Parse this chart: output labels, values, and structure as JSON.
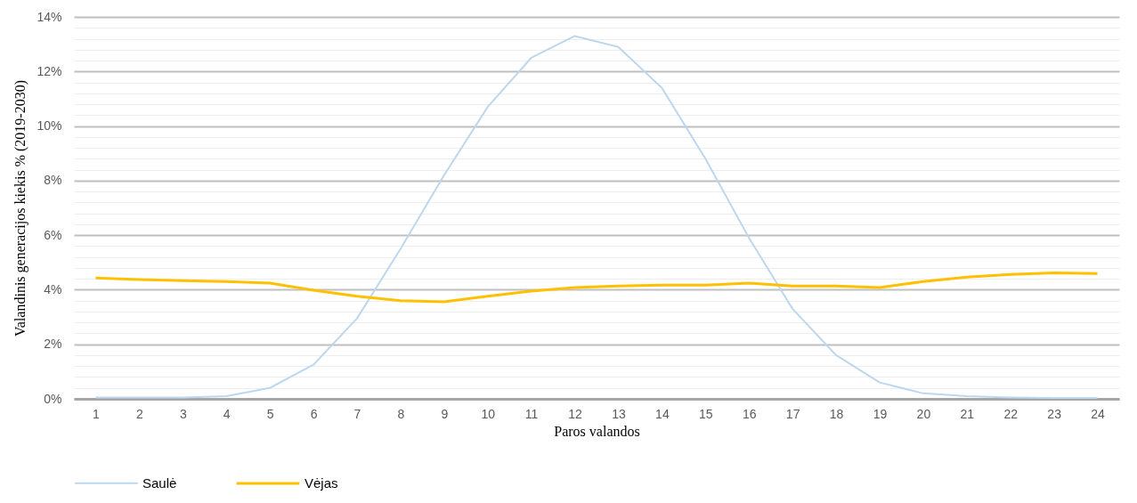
{
  "chart_data": {
    "type": "line",
    "xlabel": "Paros valandos",
    "ylabel": "Valandinis generacijos kiekis % (2019-2030)",
    "x": [
      1,
      2,
      3,
      4,
      5,
      6,
      7,
      8,
      9,
      10,
      11,
      12,
      13,
      14,
      15,
      16,
      17,
      18,
      19,
      20,
      21,
      22,
      23,
      24
    ],
    "xlim": [
      0.5,
      24.5
    ],
    "xticks": [
      1,
      2,
      3,
      4,
      5,
      6,
      7,
      8,
      9,
      10,
      11,
      12,
      13,
      14,
      15,
      16,
      17,
      18,
      19,
      20,
      21,
      22,
      23,
      24
    ],
    "series": [
      {
        "name": "Saulė",
        "color": "#bdd7ee",
        "values": [
          0.05,
          0.05,
          0.05,
          0.1,
          0.4,
          1.25,
          2.95,
          5.5,
          8.2,
          10.7,
          12.5,
          13.3,
          12.9,
          11.4,
          8.8,
          5.9,
          3.3,
          1.6,
          0.6,
          0.2,
          0.1,
          0.05,
          0.03,
          0.03
        ]
      },
      {
        "name": "Vėjas",
        "color": "#ffc000",
        "values": [
          4.43,
          4.37,
          4.33,
          4.3,
          4.24,
          3.98,
          3.76,
          3.6,
          3.56,
          3.76,
          3.95,
          4.08,
          4.14,
          4.17,
          4.17,
          4.24,
          4.14,
          4.14,
          4.08,
          4.3,
          4.46,
          4.56,
          4.62,
          4.59
        ]
      }
    ],
    "ylim": [
      0,
      14
    ],
    "yticks": [
      {
        "value": 0,
        "label": "0%"
      },
      {
        "value": 0.4,
        "label": null
      },
      {
        "value": 0.8,
        "label": null
      },
      {
        "value": 1.2,
        "label": null
      },
      {
        "value": 1.6,
        "label": null
      },
      {
        "value": 2,
        "label": "2%"
      },
      {
        "value": 2.4,
        "label": null
      },
      {
        "value": 2.8,
        "label": null
      },
      {
        "value": 3.2,
        "label": null
      },
      {
        "value": 3.6,
        "label": null
      },
      {
        "value": 4,
        "label": "4%"
      },
      {
        "value": 4.4,
        "label": null
      },
      {
        "value": 4.8,
        "label": null
      },
      {
        "value": 5.2,
        "label": null
      },
      {
        "value": 5.6,
        "label": null
      },
      {
        "value": 6,
        "label": "6%"
      },
      {
        "value": 6.4,
        "label": null
      },
      {
        "value": 6.8,
        "label": null
      },
      {
        "value": 7.2,
        "label": null
      },
      {
        "value": 7.6,
        "label": null
      },
      {
        "value": 8,
        "label": "8%"
      },
      {
        "value": 8.4,
        "label": null
      },
      {
        "value": 8.8,
        "label": null
      },
      {
        "value": 9.2,
        "label": null
      },
      {
        "value": 9.6,
        "label": null
      },
      {
        "value": 10,
        "label": "10%"
      },
      {
        "value": 10.4,
        "label": null
      },
      {
        "value": 10.8,
        "label": null
      },
      {
        "value": 11.2,
        "label": null
      },
      {
        "value": 11.6,
        "label": null
      },
      {
        "value": 12,
        "label": "12%"
      },
      {
        "value": 12.4,
        "label": null
      },
      {
        "value": 12.8,
        "label": null
      },
      {
        "value": 13.2,
        "label": null
      },
      {
        "value": 13.6,
        "label": null
      },
      {
        "value": 14,
        "label": "14%"
      }
    ],
    "grid": true,
    "legend": "bottom",
    "marker": "none",
    "line_style": "solid"
  }
}
